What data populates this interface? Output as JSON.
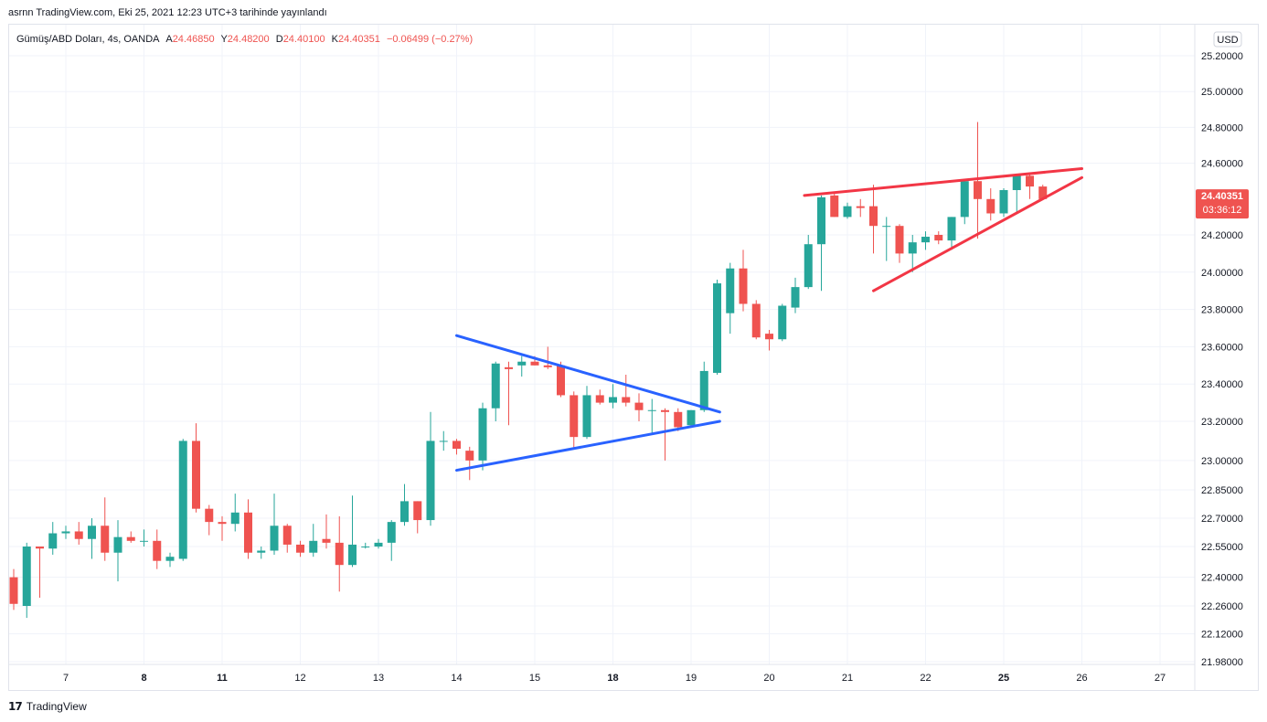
{
  "header": {
    "publish_info": "asrnn TradingView.com, Eki 25, 2021 12:23 UTC+3 tarihinde yayınlandı"
  },
  "legend": {
    "symbol": "Gümüş/ABD Doları, 4s, OANDA",
    "open_label": "A",
    "open_value": "24.46850",
    "high_label": "Y",
    "high_value": "24.48200",
    "low_label": "D",
    "low_value": "24.40100",
    "close_label": "K",
    "close_value": "24.40351",
    "change": "−0.06499 (−0.27%)"
  },
  "currency_button": "USD",
  "price_badge": {
    "price": "24.40351",
    "countdown": "03:36:12"
  },
  "footer": {
    "logo_text": "17",
    "brand": "TradingView"
  },
  "colors": {
    "up": "#26a69a",
    "down": "#ef5350",
    "pattern_blue": "#2962ff",
    "pattern_red": "#f23645",
    "grid": "#f0f3fa",
    "text": "#131722",
    "axis_border": "#e0e3eb"
  },
  "chart_data": {
    "type": "candlestick",
    "y_axis_ticks": [
      "25.20000",
      "25.00000",
      "24.80000",
      "24.60000",
      "24.20000",
      "24.00000",
      "23.80000",
      "23.60000",
      "23.40000",
      "23.20000",
      "23.00000",
      "22.85000",
      "22.70000",
      "22.55000",
      "22.40000",
      "22.26000",
      "22.12000",
      "21.98000"
    ],
    "x_axis_ticks": [
      {
        "label": "7",
        "i": 4
      },
      {
        "label": "8",
        "i": 10
      },
      {
        "label": "11",
        "i": 16
      },
      {
        "label": "12",
        "i": 22
      },
      {
        "label": "13",
        "i": 28
      },
      {
        "label": "14",
        "i": 34
      },
      {
        "label": "15",
        "i": 40
      },
      {
        "label": "18",
        "i": 46
      },
      {
        "label": "19",
        "i": 52
      },
      {
        "label": "20",
        "i": 58
      },
      {
        "label": "21",
        "i": 64
      },
      {
        "label": "22",
        "i": 70
      },
      {
        "label": "25",
        "i": 76
      },
      {
        "label": "26",
        "i": 82
      },
      {
        "label": "27",
        "i": 88
      }
    ],
    "bold_x_ticks": [
      "8",
      "11",
      "18",
      "25"
    ],
    "candles": [
      {
        "o": 22.4,
        "h": 22.44,
        "l": 22.24,
        "c": 22.27
      },
      {
        "o": 22.26,
        "h": 22.57,
        "l": 22.2,
        "c": 22.55
      },
      {
        "o": 22.55,
        "h": 22.55,
        "l": 22.3,
        "c": 22.54
      },
      {
        "o": 22.54,
        "h": 22.68,
        "l": 22.51,
        "c": 22.62
      },
      {
        "o": 22.62,
        "h": 22.66,
        "l": 22.59,
        "c": 22.63
      },
      {
        "o": 22.63,
        "h": 22.68,
        "l": 22.56,
        "c": 22.59
      },
      {
        "o": 22.59,
        "h": 22.7,
        "l": 22.49,
        "c": 22.66
      },
      {
        "o": 22.66,
        "h": 22.81,
        "l": 22.48,
        "c": 22.52
      },
      {
        "o": 22.52,
        "h": 22.69,
        "l": 22.38,
        "c": 22.6
      },
      {
        "o": 22.6,
        "h": 22.63,
        "l": 22.57,
        "c": 22.58
      },
      {
        "o": 22.58,
        "h": 22.64,
        "l": 22.55,
        "c": 22.58
      },
      {
        "o": 22.58,
        "h": 22.64,
        "l": 22.44,
        "c": 22.48
      },
      {
        "o": 22.48,
        "h": 22.52,
        "l": 22.45,
        "c": 22.5
      },
      {
        "o": 22.49,
        "h": 23.11,
        "l": 22.48,
        "c": 23.1
      },
      {
        "o": 23.1,
        "h": 23.19,
        "l": 22.73,
        "c": 22.75
      },
      {
        "o": 22.75,
        "h": 22.77,
        "l": 22.61,
        "c": 22.68
      },
      {
        "o": 22.68,
        "h": 22.71,
        "l": 22.58,
        "c": 22.67
      },
      {
        "o": 22.67,
        "h": 22.83,
        "l": 22.63,
        "c": 22.73
      },
      {
        "o": 22.73,
        "h": 22.8,
        "l": 22.49,
        "c": 22.52
      },
      {
        "o": 22.52,
        "h": 22.55,
        "l": 22.49,
        "c": 22.53
      },
      {
        "o": 22.53,
        "h": 22.83,
        "l": 22.51,
        "c": 22.66
      },
      {
        "o": 22.66,
        "h": 22.67,
        "l": 22.52,
        "c": 22.56
      },
      {
        "o": 22.56,
        "h": 22.58,
        "l": 22.5,
        "c": 22.52
      },
      {
        "o": 22.52,
        "h": 22.67,
        "l": 22.5,
        "c": 22.58
      },
      {
        "o": 22.59,
        "h": 22.72,
        "l": 22.54,
        "c": 22.57
      },
      {
        "o": 22.57,
        "h": 22.71,
        "l": 22.33,
        "c": 22.46
      },
      {
        "o": 22.46,
        "h": 22.82,
        "l": 22.45,
        "c": 22.56
      },
      {
        "o": 22.55,
        "h": 22.57,
        "l": 22.54,
        "c": 22.55
      },
      {
        "o": 22.55,
        "h": 22.59,
        "l": 22.54,
        "c": 22.57
      },
      {
        "o": 22.57,
        "h": 22.69,
        "l": 22.48,
        "c": 22.68
      },
      {
        "o": 22.68,
        "h": 22.88,
        "l": 22.66,
        "c": 22.79
      },
      {
        "o": 22.79,
        "h": 22.79,
        "l": 22.62,
        "c": 22.69
      },
      {
        "o": 22.69,
        "h": 23.25,
        "l": 22.66,
        "c": 23.1
      },
      {
        "o": 23.1,
        "h": 23.15,
        "l": 23.05,
        "c": 23.1
      },
      {
        "o": 23.1,
        "h": 23.11,
        "l": 23.03,
        "c": 23.06
      },
      {
        "o": 23.05,
        "h": 23.07,
        "l": 22.9,
        "c": 23.0
      },
      {
        "o": 23.0,
        "h": 23.3,
        "l": 22.95,
        "c": 23.27
      },
      {
        "o": 23.27,
        "h": 23.52,
        "l": 23.2,
        "c": 23.51
      },
      {
        "o": 23.49,
        "h": 23.52,
        "l": 23.18,
        "c": 23.48
      },
      {
        "o": 23.5,
        "h": 23.55,
        "l": 23.44,
        "c": 23.52
      },
      {
        "o": 23.52,
        "h": 23.55,
        "l": 23.5,
        "c": 23.5
      },
      {
        "o": 23.5,
        "h": 23.6,
        "l": 23.48,
        "c": 23.49
      },
      {
        "o": 23.5,
        "h": 23.52,
        "l": 23.33,
        "c": 23.34
      },
      {
        "o": 23.34,
        "h": 23.36,
        "l": 23.06,
        "c": 23.12
      },
      {
        "o": 23.12,
        "h": 23.39,
        "l": 23.11,
        "c": 23.34
      },
      {
        "o": 23.34,
        "h": 23.37,
        "l": 23.29,
        "c": 23.3
      },
      {
        "o": 23.3,
        "h": 23.4,
        "l": 23.27,
        "c": 23.33
      },
      {
        "o": 23.33,
        "h": 23.45,
        "l": 23.28,
        "c": 23.3
      },
      {
        "o": 23.3,
        "h": 23.35,
        "l": 23.2,
        "c": 23.26
      },
      {
        "o": 23.26,
        "h": 23.32,
        "l": 23.14,
        "c": 23.26
      },
      {
        "o": 23.26,
        "h": 23.27,
        "l": 23.0,
        "c": 23.25
      },
      {
        "o": 23.25,
        "h": 23.27,
        "l": 23.15,
        "c": 23.17
      },
      {
        "o": 23.18,
        "h": 23.26,
        "l": 23.17,
        "c": 23.26
      },
      {
        "o": 23.26,
        "h": 23.52,
        "l": 23.25,
        "c": 23.47
      },
      {
        "o": 23.46,
        "h": 23.96,
        "l": 23.45,
        "c": 23.94
      },
      {
        "o": 23.78,
        "h": 24.05,
        "l": 23.67,
        "c": 24.02
      },
      {
        "o": 24.02,
        "h": 24.12,
        "l": 23.79,
        "c": 23.83
      },
      {
        "o": 23.83,
        "h": 23.85,
        "l": 23.64,
        "c": 23.65
      },
      {
        "o": 23.67,
        "h": 23.69,
        "l": 23.58,
        "c": 23.64
      },
      {
        "o": 23.64,
        "h": 23.83,
        "l": 23.63,
        "c": 23.82
      },
      {
        "o": 23.81,
        "h": 23.97,
        "l": 23.78,
        "c": 23.92
      },
      {
        "o": 23.92,
        "h": 24.2,
        "l": 23.91,
        "c": 24.15
      },
      {
        "o": 24.15,
        "h": 24.42,
        "l": 23.9,
        "c": 24.41
      },
      {
        "o": 24.42,
        "h": 24.43,
        "l": 24.3,
        "c": 24.3
      },
      {
        "o": 24.3,
        "h": 24.38,
        "l": 24.29,
        "c": 24.36
      },
      {
        "o": 24.36,
        "h": 24.4,
        "l": 24.3,
        "c": 24.35
      },
      {
        "o": 24.36,
        "h": 24.48,
        "l": 24.1,
        "c": 24.25
      },
      {
        "o": 24.25,
        "h": 24.3,
        "l": 24.06,
        "c": 24.25
      },
      {
        "o": 24.25,
        "h": 24.26,
        "l": 24.05,
        "c": 24.1
      },
      {
        "o": 24.1,
        "h": 24.2,
        "l": 24.0,
        "c": 24.16
      },
      {
        "o": 24.16,
        "h": 24.22,
        "l": 24.12,
        "c": 24.19
      },
      {
        "o": 24.2,
        "h": 24.22,
        "l": 24.15,
        "c": 24.17
      },
      {
        "o": 24.17,
        "h": 24.3,
        "l": 24.12,
        "c": 24.3
      },
      {
        "o": 24.3,
        "h": 24.51,
        "l": 24.26,
        "c": 24.5
      },
      {
        "o": 24.5,
        "h": 24.83,
        "l": 24.18,
        "c": 24.4
      },
      {
        "o": 24.4,
        "h": 24.46,
        "l": 24.28,
        "c": 24.32
      },
      {
        "o": 24.32,
        "h": 24.46,
        "l": 24.3,
        "c": 24.45
      },
      {
        "o": 24.45,
        "h": 24.54,
        "l": 24.32,
        "c": 24.53
      },
      {
        "o": 24.53,
        "h": 24.54,
        "l": 24.4,
        "c": 24.47
      },
      {
        "o": 24.47,
        "h": 24.48,
        "l": 24.4,
        "c": 24.4
      }
    ],
    "drawings": [
      {
        "name": "triangle-upper-line",
        "color": "#2962ff",
        "i1": 34,
        "p1": 23.66,
        "i2": 54.2,
        "p2": 23.25
      },
      {
        "name": "triangle-lower-line",
        "color": "#2962ff",
        "i1": 34,
        "p1": 22.95,
        "i2": 54.2,
        "p2": 23.2
      },
      {
        "name": "wedge-upper-line",
        "color": "#f23645",
        "i1": 60.7,
        "p1": 24.42,
        "i2": 82,
        "p2": 24.57
      },
      {
        "name": "wedge-lower-line",
        "color": "#f23645",
        "i1": 66,
        "p1": 23.9,
        "i2": 82,
        "p2": 24.52
      }
    ]
  }
}
